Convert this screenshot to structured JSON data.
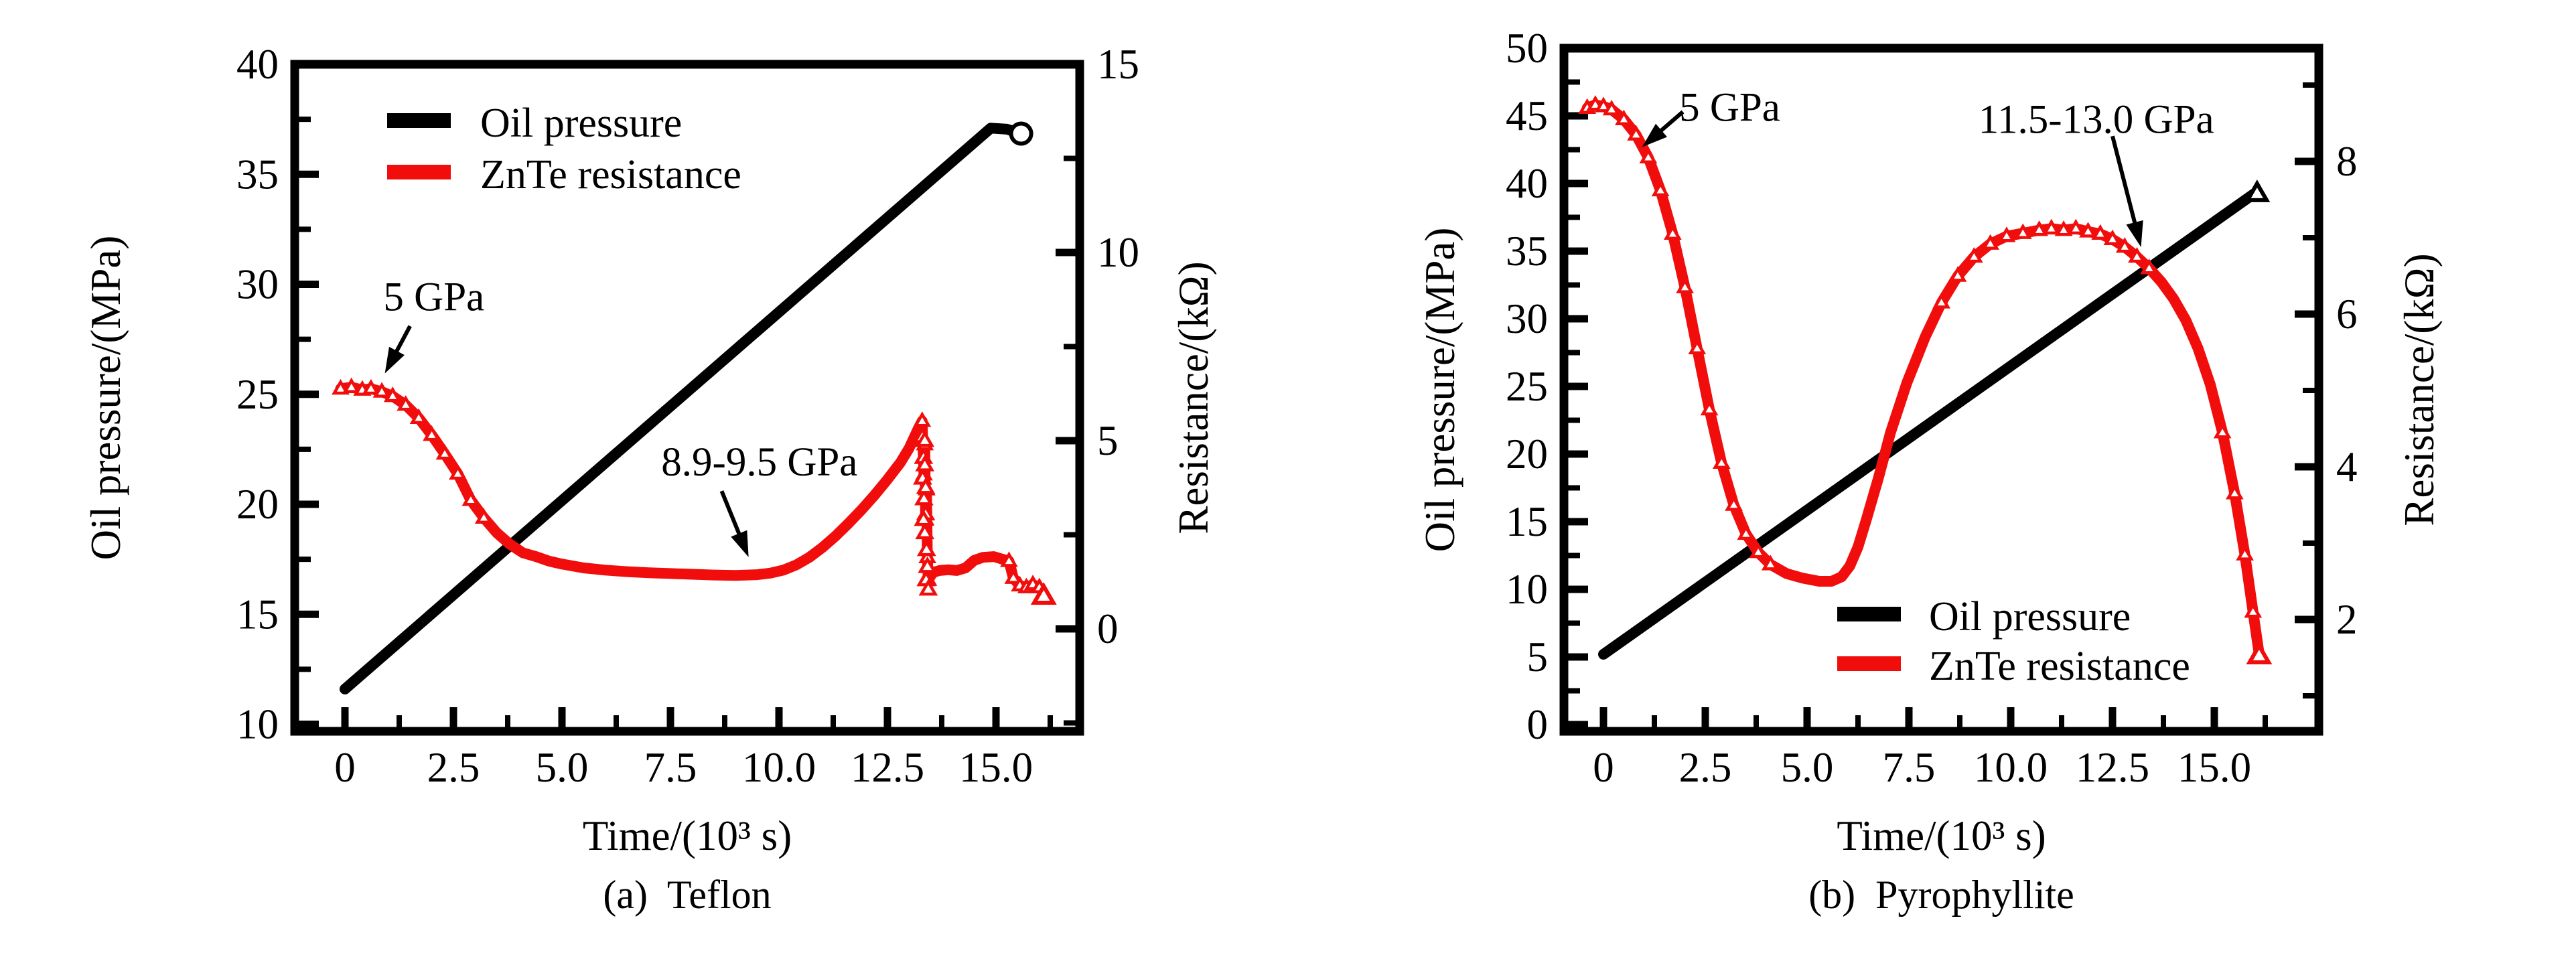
{
  "page": {
    "background": "#ffffff"
  },
  "colors": {
    "oil": "#000000",
    "znte": "#f20d0d",
    "text": "#000000"
  },
  "chart_data": [
    {
      "type": "line",
      "id": "teflon",
      "caption": "(a)  Teflon",
      "xlabel": "Time/(10³ s)",
      "ylabel_left": "Oil pressure/(MPa)",
      "ylabel_right": "Resistance/(kΩ)",
      "x_axis": {
        "min": -1.16,
        "max": 16.93,
        "ticks": [
          0,
          2.5,
          5,
          7.5,
          10,
          12.5,
          15
        ],
        "tick_labels": [
          "0",
          "2.5",
          "5.0",
          "7.5",
          "10.0",
          "12.5",
          "15.0"
        ],
        "minor_ticks": [
          1.25,
          3.75,
          6.25,
          8.75,
          11.25,
          13.75,
          16.25
        ]
      },
      "y_left": {
        "min": 9.6,
        "max": 40,
        "ticks": [
          10,
          15,
          20,
          25,
          30,
          35,
          40
        ],
        "tick_labels": [
          "10",
          "15",
          "20",
          "25",
          "30",
          "35",
          "40"
        ],
        "minor_ticks": [
          12.5,
          17.5,
          22.5,
          27.5,
          32.5,
          37.5
        ]
      },
      "y_right": {
        "min": -2.74,
        "max": 15,
        "ticks": [
          0,
          5,
          10,
          15
        ],
        "tick_labels": [
          "0",
          "5",
          "10",
          "15"
        ],
        "minor_ticks": [
          -2.5,
          2.5,
          7.5,
          12.5
        ]
      },
      "legend": {
        "position": "top-left",
        "items": [
          {
            "label": "Oil pressure",
            "color_ref": "oil"
          },
          {
            "label": "ZnTe resistance",
            "color_ref": "znte"
          }
        ]
      },
      "annotations": [
        {
          "text": "5 GPa",
          "label_x": 2.05,
          "label_y": 29.4,
          "arrow": [
            [
              1.5,
              28.1
            ],
            [
              0.92,
              25.95
            ]
          ]
        },
        {
          "text": "8.9-9.5 GPa",
          "label_x": 9.55,
          "label_y": 21.9,
          "arrow": [
            [
              8.68,
              20.6
            ],
            [
              9.3,
              17.6
            ]
          ]
        }
      ],
      "series": [
        {
          "name": "Oil pressure",
          "axis": "left",
          "color_ref": "oil",
          "end_marker": "circle",
          "points": [
            [
              0,
              11.6
            ],
            [
              14.88,
              37.1
            ],
            [
              15.25,
              37.05
            ],
            [
              15.58,
              36.85
            ]
          ]
        },
        {
          "name": "ZnTe resistance",
          "axis": "right",
          "color_ref": "znte",
          "end_marker": "triangle",
          "points": [
            [
              -0.1,
              6.38
            ],
            [
              0.15,
              6.42
            ],
            [
              0.4,
              6.35
            ],
            [
              0.6,
              6.38
            ],
            [
              0.85,
              6.3
            ],
            [
              1.1,
              6.18
            ],
            [
              1.4,
              5.95
            ],
            [
              1.7,
              5.6
            ],
            [
              2.0,
              5.15
            ],
            [
              2.3,
              4.65
            ],
            [
              2.6,
              4.12
            ],
            [
              2.9,
              3.42
            ],
            [
              3.2,
              2.95
            ],
            [
              3.5,
              2.55
            ],
            [
              3.8,
              2.25
            ],
            [
              4.1,
              2.02
            ],
            [
              4.4,
              1.92
            ],
            [
              4.7,
              1.8
            ],
            [
              5.0,
              1.72
            ],
            [
              5.5,
              1.62
            ],
            [
              6.0,
              1.56
            ],
            [
              6.5,
              1.52
            ],
            [
              7.0,
              1.49
            ],
            [
              7.5,
              1.47
            ],
            [
              8.0,
              1.45
            ],
            [
              8.5,
              1.43
            ],
            [
              9.0,
              1.42
            ],
            [
              9.5,
              1.44
            ],
            [
              9.8,
              1.48
            ],
            [
              10.1,
              1.56
            ],
            [
              10.4,
              1.7
            ],
            [
              10.7,
              1.9
            ],
            [
              11.0,
              2.16
            ],
            [
              11.3,
              2.46
            ],
            [
              11.6,
              2.8
            ],
            [
              11.9,
              3.16
            ],
            [
              12.2,
              3.55
            ],
            [
              12.5,
              3.97
            ],
            [
              12.8,
              4.42
            ],
            [
              13.0,
              4.8
            ],
            [
              13.2,
              5.3
            ],
            [
              13.3,
              5.52
            ],
            [
              13.34,
              4.1
            ],
            [
              13.36,
              4.9
            ],
            [
              13.38,
              2.9
            ],
            [
              13.4,
              3.7
            ],
            [
              13.42,
              1.9
            ],
            [
              13.44,
              1.3
            ],
            [
              13.55,
              1.5
            ],
            [
              13.7,
              1.55
            ],
            [
              13.9,
              1.57
            ],
            [
              14.1,
              1.55
            ],
            [
              14.3,
              1.62
            ],
            [
              14.5,
              1.82
            ],
            [
              14.7,
              1.9
            ],
            [
              14.95,
              1.92
            ],
            [
              15.15,
              1.85
            ],
            [
              15.3,
              1.8
            ],
            [
              15.4,
              1.35
            ],
            [
              15.55,
              1.15
            ],
            [
              15.7,
              1.1
            ],
            [
              15.85,
              1.18
            ],
            [
              16.0,
              1.1
            ],
            [
              16.1,
              0.92
            ]
          ],
          "marker_index_ranges": [
            [
              0,
              12
            ],
            [
              41,
              47
            ],
            [
              57,
              63
            ]
          ],
          "scatter": [
            [
              13.3,
              5.1
            ],
            [
              13.33,
              4.55
            ],
            [
              13.31,
              4.0
            ],
            [
              13.36,
              4.35
            ],
            [
              13.34,
              3.45
            ],
            [
              13.38,
              3.05
            ],
            [
              13.36,
              2.55
            ],
            [
              13.4,
              2.1
            ],
            [
              13.42,
              1.65
            ],
            [
              13.39,
              1.3
            ],
            [
              13.44,
              1.05
            ],
            [
              13.33,
              2.9
            ],
            [
              13.36,
              5.0
            ],
            [
              13.38,
              3.75
            ]
          ]
        }
      ]
    },
    {
      "type": "line",
      "id": "pyrophyllite",
      "caption": "(b)  Pyrophyllite",
      "xlabel": "Time/(10³ s)",
      "ylabel_left": "Oil pressure/(MPa)",
      "ylabel_right": "Resistance/(kΩ)",
      "x_axis": {
        "min": -0.97,
        "max": 17.55,
        "ticks": [
          0,
          2.5,
          5,
          7.5,
          10,
          12.5,
          15
        ],
        "tick_labels": [
          "0",
          "2.5",
          "5.0",
          "7.5",
          "10.0",
          "12.5",
          "15.0"
        ],
        "minor_ticks": [
          1.25,
          3.75,
          6.25,
          8.75,
          11.25,
          13.75,
          16.25
        ]
      },
      "y_left": {
        "min": -0.5,
        "max": 50,
        "ticks": [
          0,
          5,
          10,
          15,
          20,
          25,
          30,
          35,
          40,
          45,
          50
        ],
        "tick_labels": [
          "0",
          "5",
          "10",
          "15",
          "20",
          "25",
          "30",
          "35",
          "40",
          "45",
          "50"
        ],
        "minor_ticks": [
          2.5,
          7.5,
          12.5,
          17.5,
          22.5,
          27.5,
          32.5,
          37.5,
          42.5,
          47.5
        ]
      },
      "y_right": {
        "min": 0.53,
        "max": 9.48,
        "ticks": [
          2,
          4,
          6,
          8
        ],
        "tick_labels": [
          "2",
          "4",
          "6",
          "8"
        ],
        "minor_ticks": [
          1,
          3,
          5,
          7,
          9
        ]
      },
      "legend": {
        "position": "bottom-middle",
        "items": [
          {
            "label": "Oil pressure",
            "color_ref": "oil"
          },
          {
            "label": "ZnTe resistance",
            "color_ref": "znte"
          }
        ]
      },
      "annotations": [
        {
          "text": "5 GPa",
          "label_x": 3.1,
          "label_y": 45.6,
          "arrow": [
            [
              1.95,
              45.3
            ],
            [
              0.95,
              42.7
            ]
          ]
        },
        {
          "text": "11.5-13.0 GPa",
          "label_x": 12.1,
          "label_y": 44.7,
          "arrow": [
            [
              12.5,
              43.5
            ],
            [
              13.2,
              35.3
            ]
          ]
        }
      ],
      "series": [
        {
          "name": "Oil pressure",
          "axis": "left",
          "color_ref": "oil",
          "end_marker": "triangle",
          "points": [
            [
              0,
              5.2
            ],
            [
              16.05,
              39.4
            ]
          ]
        },
        {
          "name": "ZnTe resistance",
          "axis": "right",
          "color_ref": "znte",
          "end_marker": "triangle",
          "points": [
            [
              -0.4,
              8.7
            ],
            [
              -0.2,
              8.74
            ],
            [
              0,
              8.72
            ],
            [
              0.2,
              8.68
            ],
            [
              0.5,
              8.55
            ],
            [
              0.8,
              8.35
            ],
            [
              1.1,
              8.05
            ],
            [
              1.4,
              7.62
            ],
            [
              1.7,
              7.05
            ],
            [
              2.0,
              6.35
            ],
            [
              2.3,
              5.55
            ],
            [
              2.6,
              4.75
            ],
            [
              2.9,
              4.05
            ],
            [
              3.2,
              3.5
            ],
            [
              3.5,
              3.12
            ],
            [
              3.8,
              2.88
            ],
            [
              4.1,
              2.72
            ],
            [
              4.5,
              2.6
            ],
            [
              4.9,
              2.54
            ],
            [
              5.3,
              2.5
            ],
            [
              5.6,
              2.5
            ],
            [
              5.85,
              2.56
            ],
            [
              6.05,
              2.7
            ],
            [
              6.25,
              2.95
            ],
            [
              6.45,
              3.3
            ],
            [
              6.75,
              3.85
            ],
            [
              7.05,
              4.45
            ],
            [
              7.45,
              5.1
            ],
            [
              7.9,
              5.7
            ],
            [
              8.3,
              6.15
            ],
            [
              8.7,
              6.5
            ],
            [
              9.1,
              6.75
            ],
            [
              9.5,
              6.92
            ],
            [
              9.9,
              7.02
            ],
            [
              10.3,
              7.06
            ],
            [
              10.7,
              7.1
            ],
            [
              11.0,
              7.12
            ],
            [
              11.3,
              7.1
            ],
            [
              11.6,
              7.12
            ],
            [
              11.9,
              7.08
            ],
            [
              12.2,
              7.05
            ],
            [
              12.5,
              6.98
            ],
            [
              12.8,
              6.88
            ],
            [
              13.1,
              6.75
            ],
            [
              13.4,
              6.6
            ],
            [
              13.7,
              6.42
            ],
            [
              14.0,
              6.2
            ],
            [
              14.3,
              5.92
            ],
            [
              14.6,
              5.55
            ],
            [
              14.9,
              5.08
            ],
            [
              15.2,
              4.45
            ],
            [
              15.5,
              3.65
            ],
            [
              15.75,
              2.85
            ],
            [
              15.95,
              2.1
            ],
            [
              16.1,
              1.55
            ]
          ],
          "marker_index_ranges": [
            [
              0,
              16
            ],
            [
              29,
              44
            ],
            [
              50,
              54
            ]
          ],
          "scatter": []
        }
      ]
    }
  ]
}
